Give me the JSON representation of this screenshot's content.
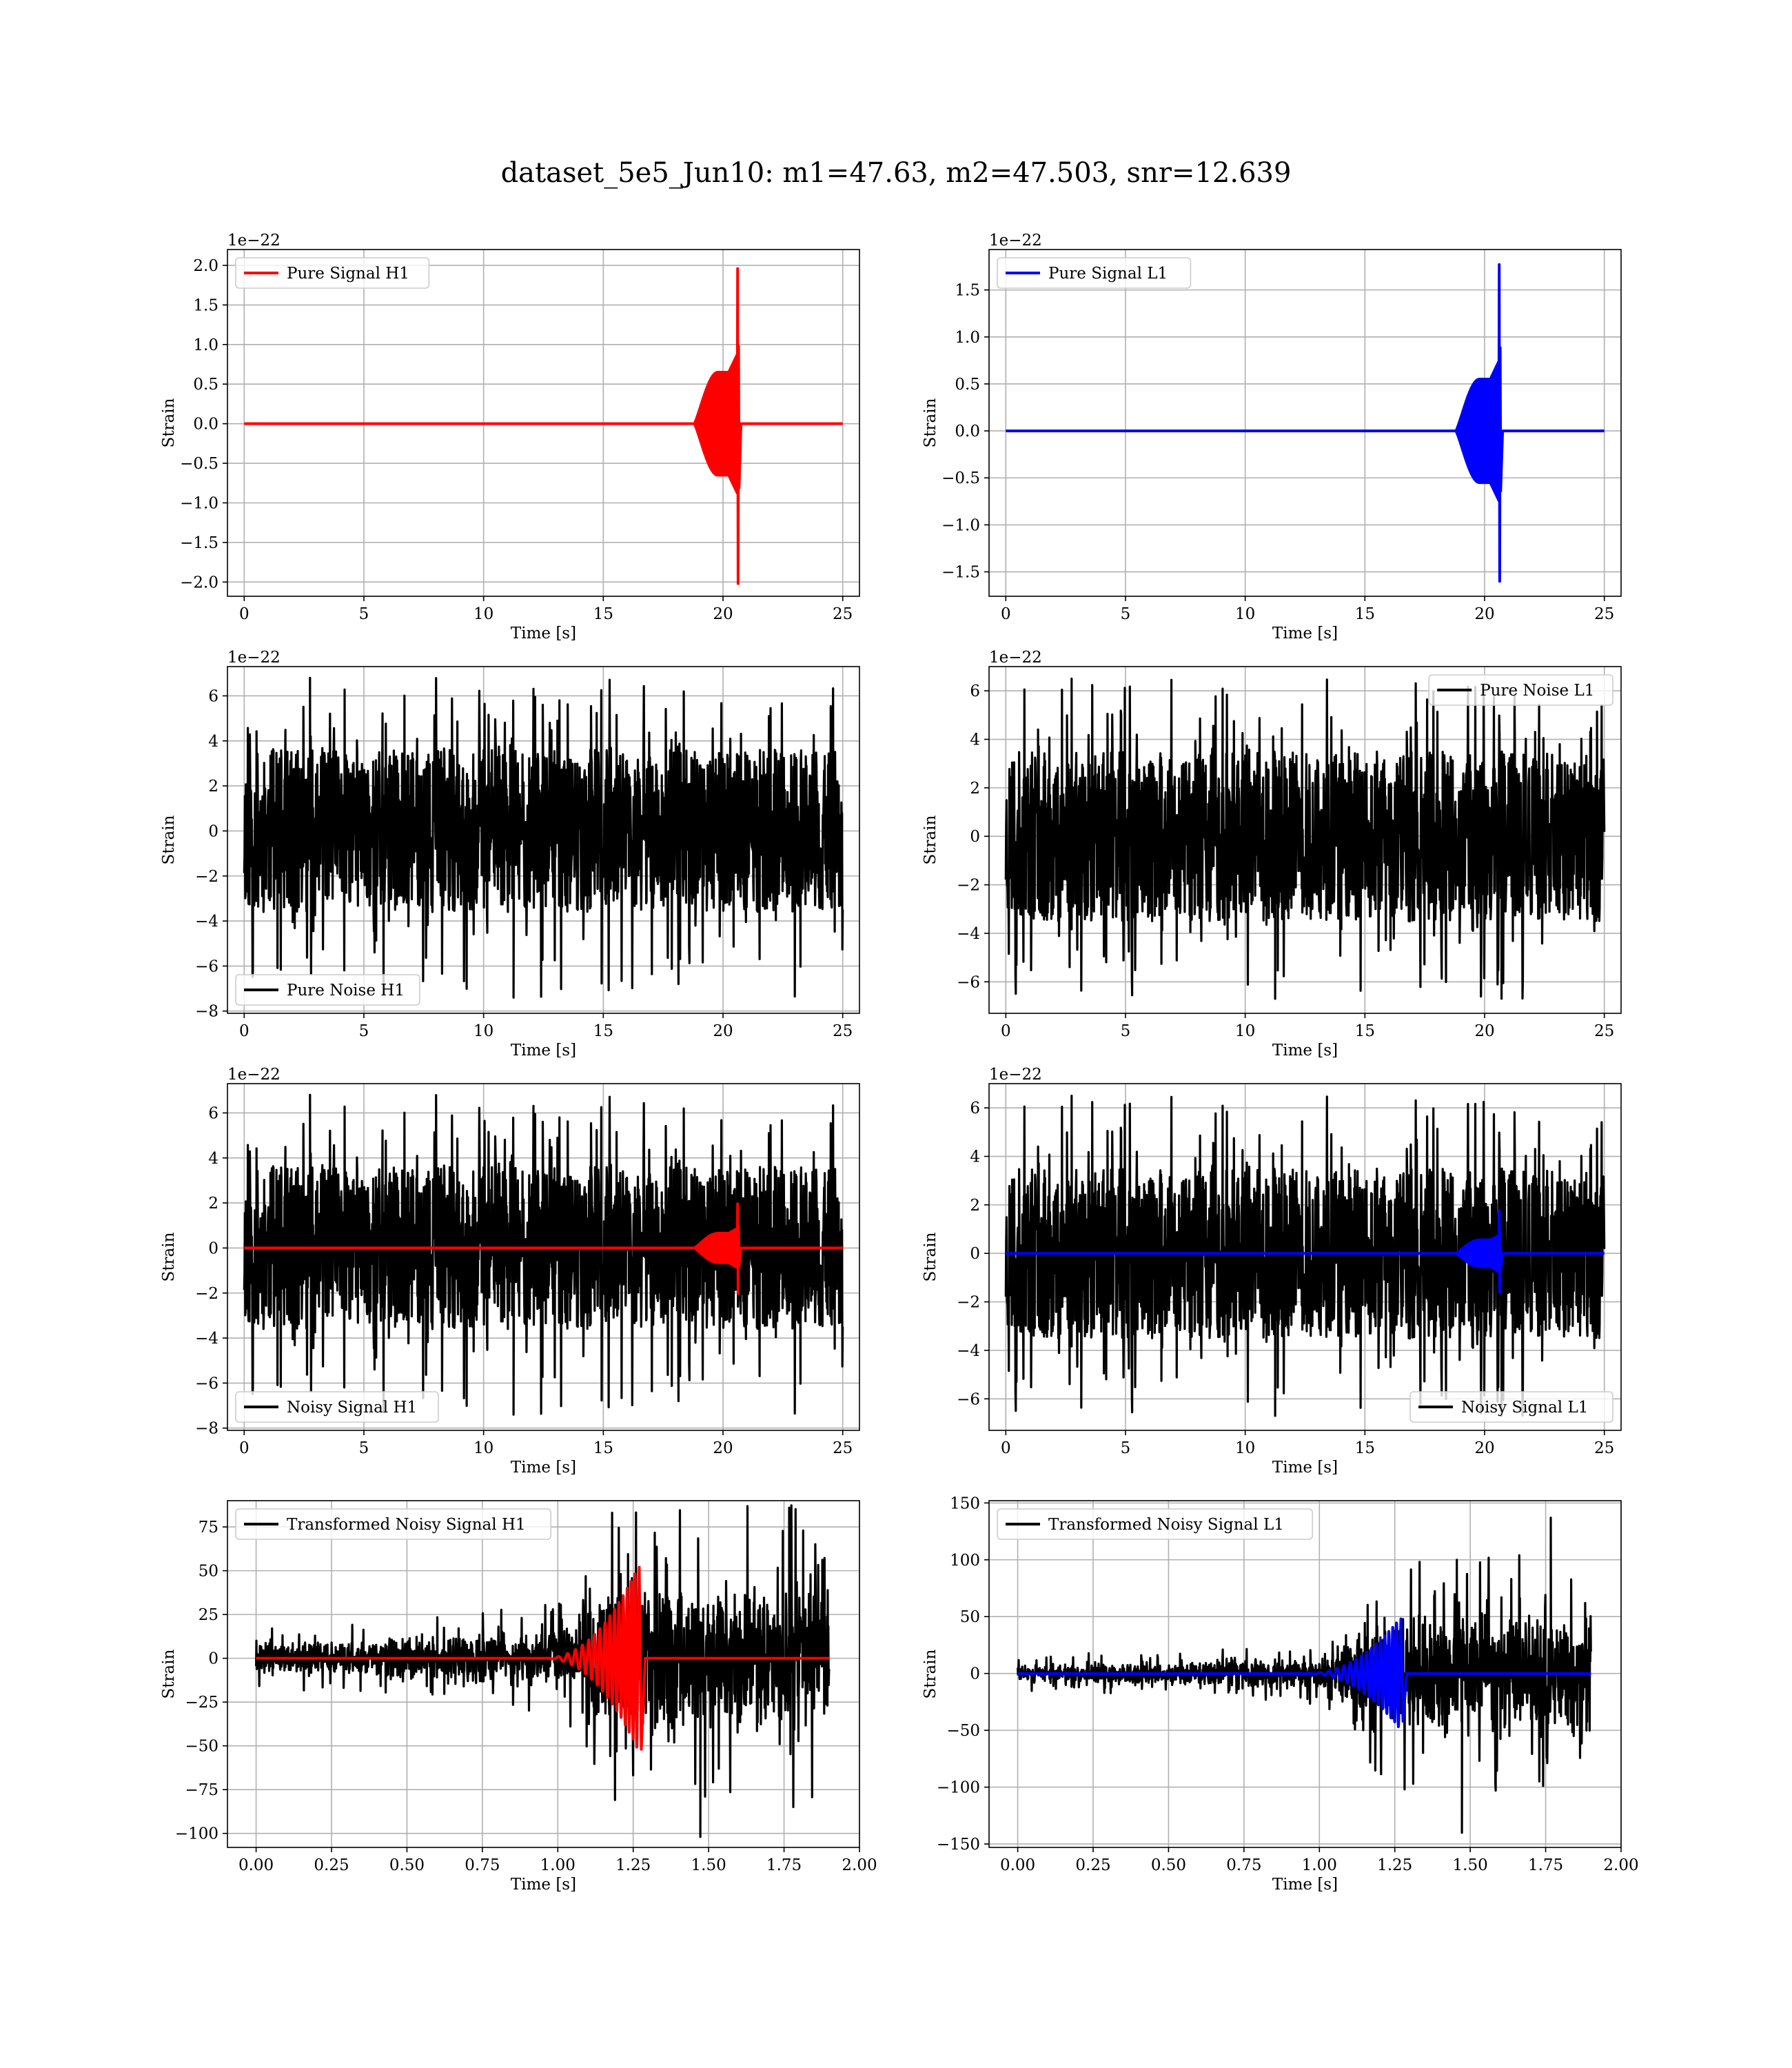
{
  "suptitle": "dataset_5e5_Jun10: m1=47.63, m2=47.503, snr=12.639",
  "colors": {
    "h1_signal": "#ff0000",
    "l1_signal": "#0000ff",
    "noise": "#000000",
    "grid": "#b0b0b0"
  },
  "chart_data": [
    {
      "type": "line",
      "id": "pure-signal-h1",
      "legend_loc": "upper-left",
      "grid": true,
      "xlabel": "Time [s]",
      "ylabel": "Strain",
      "offset_text": "1e−22",
      "xlim": [
        -0.7,
        25.7
      ],
      "ylim": [
        -2.18,
        2.2
      ],
      "xticks": [
        0,
        5,
        10,
        15,
        20,
        25
      ],
      "xtick_labels": [
        "0",
        "5",
        "10",
        "15",
        "20",
        "25"
      ],
      "yticks": [
        -2.0,
        -1.5,
        -1.0,
        -0.5,
        0.0,
        0.5,
        1.0,
        1.5,
        2.0
      ],
      "ytick_labels": [
        "−2.0",
        "−1.5",
        "−1.0",
        "−0.5",
        "0.0",
        "0.5",
        "1.0",
        "1.5",
        "2.0"
      ],
      "series": [
        {
          "name": "Pure Signal H1",
          "kind": "chirp",
          "color": "#ff0000",
          "duration": 25,
          "start": 18.8,
          "merger": 20.6,
          "ringdown_end": 20.75,
          "inspiral_amp": 0.65,
          "peak_pos": 1.96,
          "peak_neg": -2.02,
          "in_legend": true
        }
      ]
    },
    {
      "type": "line",
      "id": "pure-signal-l1",
      "legend_loc": "upper-left",
      "grid": true,
      "xlabel": "Time [s]",
      "ylabel": "Strain",
      "offset_text": "1e−22",
      "xlim": [
        -0.7,
        25.7
      ],
      "ylim": [
        -1.76,
        1.93
      ],
      "xticks": [
        0,
        5,
        10,
        15,
        20,
        25
      ],
      "xtick_labels": [
        "0",
        "5",
        "10",
        "15",
        "20",
        "25"
      ],
      "yticks": [
        -1.5,
        -1.0,
        -0.5,
        0.0,
        0.5,
        1.0,
        1.5
      ],
      "ytick_labels": [
        "−1.5",
        "−1.0",
        "−0.5",
        "0.0",
        "0.5",
        "1.0",
        "1.5"
      ],
      "series": [
        {
          "name": "Pure Signal L1",
          "kind": "chirp",
          "color": "#0000ff",
          "duration": 25,
          "start": 18.8,
          "merger": 20.6,
          "ringdown_end": 20.75,
          "inspiral_amp": 0.55,
          "peak_pos": 1.77,
          "peak_neg": -1.6,
          "in_legend": true
        }
      ]
    },
    {
      "type": "line",
      "id": "pure-noise-h1",
      "legend_loc": "lower-left",
      "grid": true,
      "xlabel": "Time [s]",
      "ylabel": "Strain",
      "offset_text": "1e−22",
      "xlim": [
        -0.7,
        25.7
      ],
      "ylim": [
        -8.1,
        7.3
      ],
      "xticks": [
        0,
        5,
        10,
        15,
        20,
        25
      ],
      "xtick_labels": [
        "0",
        "5",
        "10",
        "15",
        "20",
        "25"
      ],
      "yticks": [
        -8,
        -6,
        -4,
        -2,
        0,
        2,
        4,
        6
      ],
      "ytick_labels": [
        "−8",
        "−6",
        "−4",
        "−2",
        "0",
        "2",
        "4",
        "6"
      ],
      "series": [
        {
          "name": "Pure Noise H1",
          "kind": "noise",
          "color": "#000000",
          "duration": 25,
          "band": 3.6,
          "spike_max": 6.8,
          "spike_min": -7.4,
          "seed": 11,
          "in_legend": true
        }
      ]
    },
    {
      "type": "line",
      "id": "pure-noise-l1",
      "legend_loc": "upper-right",
      "grid": true,
      "xlabel": "Time [s]",
      "ylabel": "Strain",
      "offset_text": "1e−22",
      "xlim": [
        -0.7,
        25.7
      ],
      "ylim": [
        -7.3,
        7.0
      ],
      "xticks": [
        0,
        5,
        10,
        15,
        20,
        25
      ],
      "xtick_labels": [
        "0",
        "5",
        "10",
        "15",
        "20",
        "25"
      ],
      "yticks": [
        -6,
        -4,
        -2,
        0,
        2,
        4,
        6
      ],
      "ytick_labels": [
        "−6",
        "−4",
        "−2",
        "0",
        "2",
        "4",
        "6"
      ],
      "series": [
        {
          "name": "Pure Noise L1",
          "kind": "noise",
          "color": "#000000",
          "duration": 25,
          "band": 3.5,
          "spike_max": 6.5,
          "spike_min": -6.7,
          "seed": 23,
          "in_legend": true
        }
      ]
    },
    {
      "type": "line",
      "id": "noisy-signal-h1",
      "legend_loc": "lower-left",
      "grid": true,
      "xlabel": "Time [s]",
      "ylabel": "Strain",
      "offset_text": "1e−22",
      "xlim": [
        -0.7,
        25.7
      ],
      "ylim": [
        -8.1,
        7.3
      ],
      "xticks": [
        0,
        5,
        10,
        15,
        20,
        25
      ],
      "xtick_labels": [
        "0",
        "5",
        "10",
        "15",
        "20",
        "25"
      ],
      "yticks": [
        -8,
        -6,
        -4,
        -2,
        0,
        2,
        4,
        6
      ],
      "ytick_labels": [
        "−8",
        "−6",
        "−4",
        "−2",
        "0",
        "2",
        "4",
        "6"
      ],
      "series": [
        {
          "name": "Noisy Signal H1",
          "kind": "noise",
          "color": "#000000",
          "duration": 25,
          "band": 3.6,
          "spike_max": 6.8,
          "spike_min": -7.4,
          "seed": 11,
          "in_legend": true
        },
        {
          "name": "",
          "kind": "chirp",
          "color": "#ff0000",
          "duration": 25,
          "start": 18.8,
          "merger": 20.6,
          "ringdown_end": 20.75,
          "inspiral_amp": 0.65,
          "peak_pos": 1.96,
          "peak_neg": -2.02,
          "in_legend": false
        }
      ]
    },
    {
      "type": "line",
      "id": "noisy-signal-l1",
      "legend_loc": "lower-right",
      "grid": true,
      "xlabel": "Time [s]",
      "ylabel": "Strain",
      "offset_text": "1e−22",
      "xlim": [
        -0.7,
        25.7
      ],
      "ylim": [
        -7.3,
        7.0
      ],
      "xticks": [
        0,
        5,
        10,
        15,
        20,
        25
      ],
      "xtick_labels": [
        "0",
        "5",
        "10",
        "15",
        "20",
        "25"
      ],
      "yticks": [
        -6,
        -4,
        -2,
        0,
        2,
        4,
        6
      ],
      "ytick_labels": [
        "−6",
        "−4",
        "−2",
        "0",
        "2",
        "4",
        "6"
      ],
      "series": [
        {
          "name": "Noisy Signal L1",
          "kind": "noise",
          "color": "#000000",
          "duration": 25,
          "band": 3.5,
          "spike_max": 6.5,
          "spike_min": -6.7,
          "seed": 23,
          "in_legend": true
        },
        {
          "name": "",
          "kind": "chirp",
          "color": "#0000ff",
          "duration": 25,
          "start": 18.8,
          "merger": 20.6,
          "ringdown_end": 20.75,
          "inspiral_amp": 0.55,
          "peak_pos": 1.77,
          "peak_neg": -1.6,
          "in_legend": false
        }
      ]
    },
    {
      "type": "line",
      "id": "transformed-noisy-signal-h1",
      "legend_loc": "upper-left",
      "grid": true,
      "xlabel": "Time [s]",
      "ylabel": "Strain",
      "offset_text": "",
      "xlim": [
        -0.095,
        2.0
      ],
      "ylim": [
        -108,
        90
      ],
      "xticks": [
        0.0,
        0.25,
        0.5,
        0.75,
        1.0,
        1.25,
        1.5,
        1.75,
        2.0
      ],
      "xtick_labels": [
        "0.00",
        "0.25",
        "0.50",
        "0.75",
        "1.00",
        "1.25",
        "1.50",
        "1.75",
        "2.00"
      ],
      "yticks": [
        -100,
        -75,
        -50,
        -25,
        0,
        25,
        50,
        75
      ],
      "ytick_labels": [
        "−100",
        "−75",
        "−50",
        "−25",
        "0",
        "25",
        "50",
        "75"
      ],
      "series": [
        {
          "name": "Transformed Noisy Signal H1",
          "kind": "whitened",
          "color": "#000000",
          "duration": 1.9,
          "seed": 37,
          "in_legend": true,
          "env_points": [
            [
              0,
              9
            ],
            [
              0.4,
              10
            ],
            [
              0.7,
              14
            ],
            [
              1.0,
              16
            ],
            [
              1.08,
              24
            ],
            [
              1.12,
              44
            ],
            [
              1.9,
              44
            ]
          ],
          "spike_max": 86,
          "spike_min": -102
        },
        {
          "name": "",
          "kind": "tchirp",
          "color": "#ff0000",
          "duration": 1.9,
          "start": 0.95,
          "merger": 1.265,
          "ringdown_end": 1.29,
          "peak_pos": 52,
          "peak_neg": -52,
          "in_legend": false
        }
      ]
    },
    {
      "type": "line",
      "id": "transformed-noisy-signal-l1",
      "legend_loc": "upper-left",
      "grid": true,
      "xlabel": "Time [s]",
      "ylabel": "Strain",
      "offset_text": "",
      "xlim": [
        -0.095,
        2.0
      ],
      "ylim": [
        -153,
        152
      ],
      "xticks": [
        0.0,
        0.25,
        0.5,
        0.75,
        1.0,
        1.25,
        1.5,
        1.75,
        2.0
      ],
      "xtick_labels": [
        "0.00",
        "0.25",
        "0.50",
        "0.75",
        "1.00",
        "1.25",
        "1.50",
        "1.75",
        "2.00"
      ],
      "yticks": [
        -150,
        -100,
        -50,
        0,
        50,
        100,
        150
      ],
      "ytick_labels": [
        "−150",
        "−100",
        "−50",
        "0",
        "50",
        "100",
        "150"
      ],
      "series": [
        {
          "name": "Transformed Noisy Signal L1",
          "kind": "whitened",
          "color": "#000000",
          "duration": 1.9,
          "seed": 53,
          "in_legend": true,
          "env_points": [
            [
              0,
              8
            ],
            [
              0.4,
              10
            ],
            [
              0.7,
              12
            ],
            [
              1.0,
              14
            ],
            [
              1.1,
              30
            ],
            [
              1.12,
              52
            ],
            [
              1.9,
              52
            ]
          ],
          "spike_max": 137,
          "spike_min": -140
        },
        {
          "name": "",
          "kind": "tchirp",
          "color": "#0000ff",
          "duration": 1.9,
          "start": 0.95,
          "merger": 1.265,
          "ringdown_end": 1.29,
          "peak_pos": 48,
          "peak_neg": -42,
          "in_legend": false
        }
      ]
    }
  ]
}
